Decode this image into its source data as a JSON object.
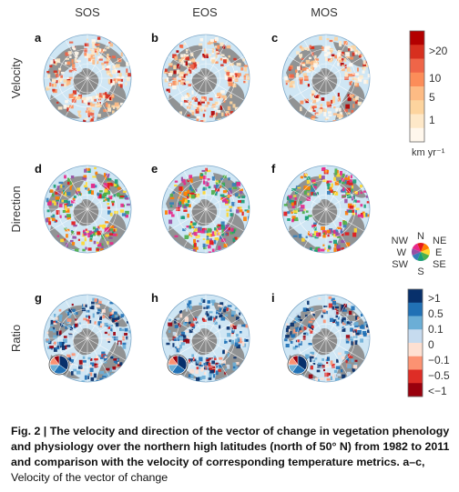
{
  "columns": [
    "SOS",
    "EOS",
    "MOS"
  ],
  "rows": [
    {
      "label": "Velocity",
      "panels": [
        "a",
        "b",
        "c"
      ],
      "mode": "velocity"
    },
    {
      "label": "Direction",
      "panels": [
        "d",
        "e",
        "f"
      ],
      "mode": "direction"
    },
    {
      "label": "Ratio",
      "panels": [
        "g",
        "h",
        "i"
      ],
      "mode": "ratio"
    }
  ],
  "legends": {
    "velocity": {
      "ticks": [
        ">20",
        "10",
        "5",
        "1"
      ],
      "unit": "km yr⁻¹",
      "colors": [
        "#b30000",
        "#d7301f",
        "#ef6548",
        "#fc8d59",
        "#fdbb84",
        "#fdd49e",
        "#fee8c8",
        "#fff7ec"
      ]
    },
    "direction": {
      "labels": {
        "N": "N",
        "NE": "NE",
        "E": "E",
        "SE": "SE",
        "S": "S",
        "SW": "SW",
        "W": "W",
        "NW": "NW"
      },
      "colors": [
        "#e41a1c",
        "#ff7f00",
        "#ffd92f",
        "#4daf4a",
        "#1b9e77",
        "#377eb8",
        "#984ea3",
        "#e7298a"
      ]
    },
    "ratio": {
      "ticks": [
        ">1",
        "0.5",
        "0.1",
        "0",
        "−0.1",
        "−0.5",
        "<−1"
      ],
      "colors": [
        "#08306b",
        "#2171b5",
        "#6baed6",
        "#c6dbef",
        "#fee0d2",
        "#fc9272",
        "#de2d26",
        "#99000d"
      ]
    }
  },
  "map_colors": {
    "ocean": "#cfe6f4",
    "land": "#8a8a8a",
    "grid": "#ffffff",
    "outline": "#7fa9c9"
  },
  "caption": {
    "lead": "Fig. 2 | The velocity and direction of the vector of change in vegetation phenology and physiology over the northern high latitudes (north of 50° N) from 1982 to 2011 and comparison with the velocity of corresponding temperature metrics. a–c,",
    "tail": " Velocity of the vector of change"
  }
}
